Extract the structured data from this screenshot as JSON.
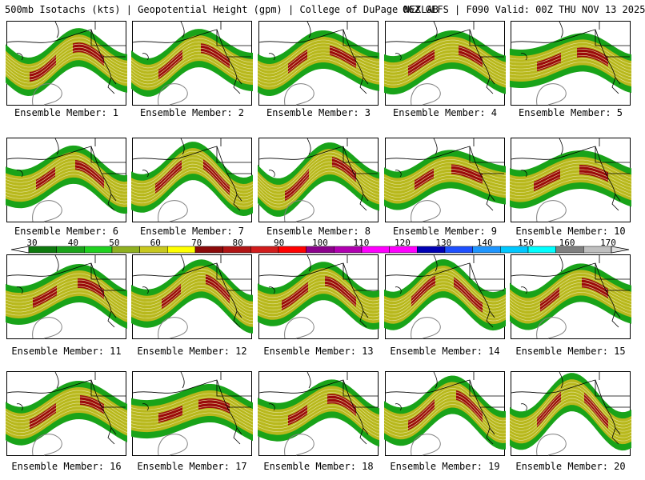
{
  "header": {
    "left": "500mb Isotachs (kts) | Geopotential Height (gpm) | College of DuPage NEXLAB",
    "right": "06Z GEFS | F090 Valid: 00Z THU NOV 13 2025"
  },
  "colorbar": {
    "labels": [
      "30",
      "40",
      "50",
      "60",
      "70",
      "80",
      "90",
      "100",
      "110",
      "120",
      "130",
      "140",
      "150",
      "160",
      "170"
    ],
    "colors": [
      "#0e7a0e",
      "#19a319",
      "#1fd11f",
      "#8fb020",
      "#c8c81e",
      "#ffff00",
      "#8b0a0a",
      "#b01414",
      "#d11c1c",
      "#ff0000",
      "#8b008b",
      "#b000b0",
      "#ff00ff",
      "#ff00ff",
      "#0000b4",
      "#1e50ff",
      "#1e96ff",
      "#00c8ff",
      "#00ffff",
      "#7f7f7f",
      "#bfbfbf"
    ]
  },
  "map_style": {
    "background": "#ffffff",
    "wind_40_60": "#19a319",
    "wind_60_80": "#b8b81c",
    "wind_80_plus": "#9b0a0a",
    "height_contours": "#e6e6a0",
    "coastlines": "#000000",
    "low_contour": "#7f7f7f"
  },
  "members": [
    "Ensemble Member: 1",
    "Ensemble Member: 2",
    "Ensemble Member: 3",
    "Ensemble Member: 4",
    "Ensemble Member: 5",
    "Ensemble Member: 6",
    "Ensemble Member: 7",
    "Ensemble Member: 8",
    "Ensemble Member: 9",
    "Ensemble Member: 10",
    "Ensemble Member: 11",
    "Ensemble Member: 12",
    "Ensemble Member: 13",
    "Ensemble Member: 14",
    "Ensemble Member: 15",
    "Ensemble Member: 16",
    "Ensemble Member: 17",
    "Ensemble Member: 18",
    "Ensemble Member: 19",
    "Ensemble Member: 20"
  ]
}
